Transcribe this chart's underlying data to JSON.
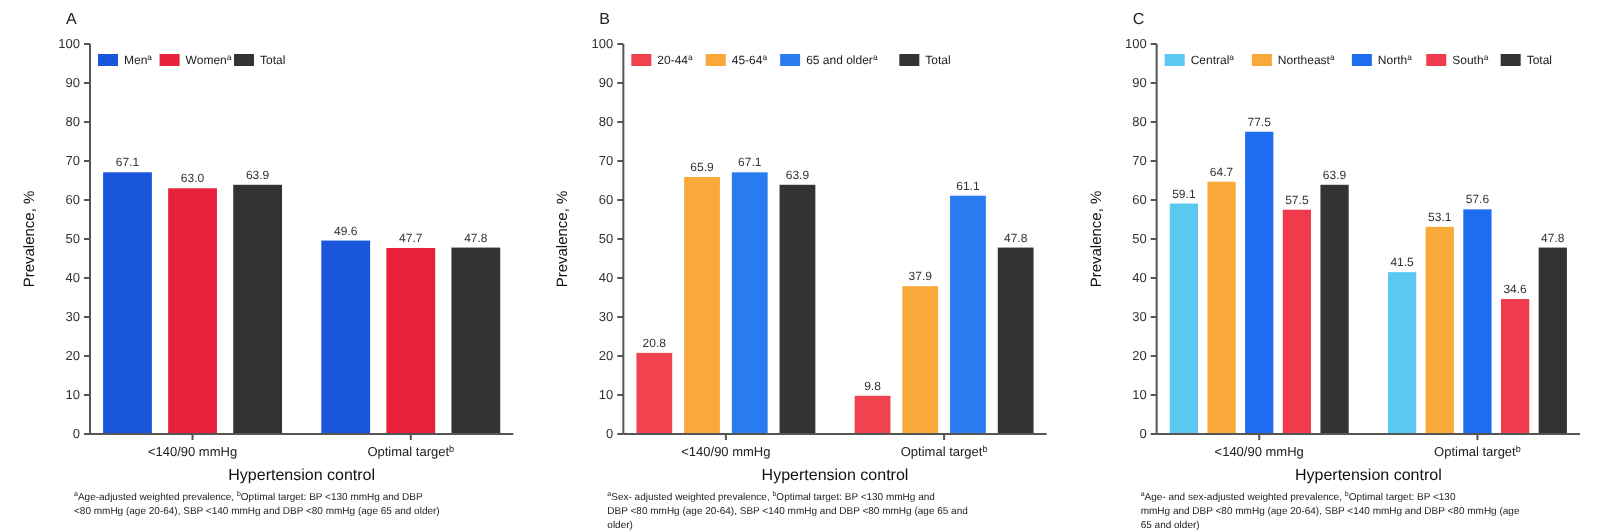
{
  "chart_data": [
    {
      "type": "bar",
      "title": "A",
      "xlabel": "Hypertension control",
      "ylabel": "Prevalence, %",
      "categories": [
        "<140/90 mmHg",
        "Optimal target$^{b}$"
      ],
      "series": [
        {
          "name": "Men$^{a}$",
          "color": "#1a56db",
          "values": [
            67.1,
            49.6
          ]
        },
        {
          "name": "Women$^{a}$",
          "color": "#e8203a",
          "values": [
            63.0,
            47.7
          ],
          "value_labels": [
            "63.0",
            "47.7"
          ]
        },
        {
          "name": "Total",
          "color": "#333333",
          "values": [
            63.9,
            47.8
          ]
        }
      ],
      "ylim": [
        0,
        100
      ],
      "yticks": [
        0,
        10,
        20,
        30,
        40,
        50,
        60,
        70,
        80,
        90,
        100
      ],
      "legend": "top left",
      "data_labels": true,
      "annotations": [
        "$^{a}$Age-adjusted weighted prevalence, $^{b}$Optimal target: BP <130 mmHg and DBP <80 mmHg (age 20-64), SBP <140 mmHg and DBP <80 mmHg (age 65 and older)"
      ]
    },
    {
      "type": "bar",
      "title": "B",
      "xlabel": "Hypertension control",
      "ylabel": "Prevalence, %",
      "categories": [
        "<140/90 mmHg",
        "Optimal target$^{b}$"
      ],
      "series": [
        {
          "name": "20-44$^{a}$",
          "color": "#f0424f",
          "values": [
            20.8,
            9.8
          ]
        },
        {
          "name": "45-64$^{a}$",
          "color": "#f9a93a",
          "values": [
            65.9,
            37.9
          ]
        },
        {
          "name": "65 and older$^{a}$",
          "color": "#2b7bf0",
          "values": [
            67.1,
            61.1
          ]
        },
        {
          "name": "Total",
          "color": "#333333",
          "values": [
            63.9,
            47.8
          ]
        }
      ],
      "ylim": [
        0,
        100
      ],
      "yticks": [
        0,
        10,
        20,
        30,
        40,
        50,
        60,
        70,
        80,
        90,
        100
      ],
      "legend": "top left",
      "data_labels": true,
      "annotations": [
        "$^{a}$Sex- adjusted weighted prevalence, $^{b}$Optimal target: BP <130 mmHg and DBP <80 mmHg (age 20-64), SBP <140 mmHg and DBP <80 mmHg (age 65 and older)"
      ]
    },
    {
      "type": "bar",
      "title": "C",
      "xlabel": "Hypertension control",
      "ylabel": "Prevalence, %",
      "categories": [
        "<140/90 mmHg",
        "Optimal target$^{b}$"
      ],
      "series": [
        {
          "name": "Central$^{a}$",
          "color": "#5bc8f2",
          "values": [
            59.1,
            41.5
          ]
        },
        {
          "name": "Northeast$^{a}$",
          "color": "#f9a93a",
          "values": [
            64.7,
            53.1
          ]
        },
        {
          "name": "North$^{a}$",
          "color": "#1e6cf0",
          "values": [
            77.5,
            57.6
          ]
        },
        {
          "name": "South$^{a}$",
          "color": "#ef3b4c",
          "values": [
            57.5,
            34.6
          ]
        },
        {
          "name": "Total",
          "color": "#333333",
          "values": [
            63.9,
            47.8
          ]
        }
      ],
      "ylim": [
        0,
        100
      ],
      "yticks": [
        0,
        10,
        20,
        30,
        40,
        50,
        60,
        70,
        80,
        90,
        100
      ],
      "legend": "top left",
      "data_labels": true,
      "annotations": [
        "$^{a}$Age- and sex-adjusted weighted prevalence, $^{b}$Optimal target: BP <130 mmHg and DBP <80 mmHg (age 20-64), SBP <140 mmHg and DBP <80 mmHg (age 65 and older)"
      ]
    }
  ]
}
